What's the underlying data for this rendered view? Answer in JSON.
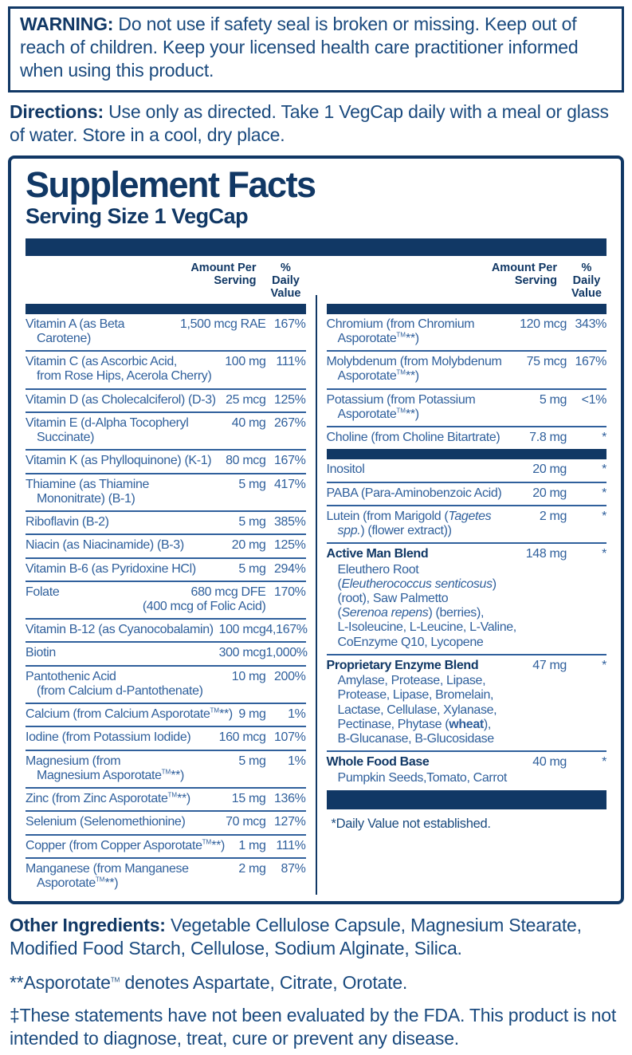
{
  "warning": {
    "label": "WARNING:",
    "text": " Do not use if safety seal is broken or missing. Keep out of reach of children. Keep your licensed health care practitioner informed when using this product."
  },
  "directions": {
    "label": "Directions:",
    "text": " Use only as directed. Take 1 VegCap daily with a meal or glass of water. Store in a cool, dry place."
  },
  "facts": {
    "title": "Supplement Facts",
    "serving_size": "Serving Size 1 VegCap",
    "col_headers": {
      "amount": "Amount Per\nServing",
      "dv": "% Daily\nValue"
    },
    "left_rows": [
      {
        "name": "Vitamin A (as Beta Carotene)",
        "amount": "1,500 mcg RAE",
        "dv": "167%"
      },
      {
        "name": "Vitamin C (as Ascorbic Acid,\nfrom Rose Hips, Acerola Cherry)",
        "amount": "100 mg",
        "dv": "111%"
      },
      {
        "name": "Vitamin D (as Cholecalciferol) (D-3)",
        "amount": "25 mcg",
        "dv": "125%"
      },
      {
        "name": "Vitamin E (d-Alpha Tocopheryl\nSuccinate)",
        "amount": "40 mg",
        "dv": "267%"
      },
      {
        "name": "Vitamin K (as Phylloquinone) (K-1)",
        "amount": "80 mcg",
        "dv": "167%"
      },
      {
        "name": "Thiamine (as Thiamine\nMononitrate) (B-1)",
        "amount": "5 mg",
        "dv": "417%"
      },
      {
        "name": "Riboflavin (B-2)",
        "amount": "5 mg",
        "dv": "385%"
      },
      {
        "name": "Niacin (as Niacinamide) (B-3)",
        "amount": "20 mg",
        "dv": "125%"
      },
      {
        "name": "Vitamin B-6 (as Pyridoxine HCl)",
        "amount": "5 mg",
        "dv": "294%"
      },
      {
        "name": "Folate",
        "amount": "680 mcg DFE\n(400 mcg of Folic Acid)",
        "dv": "170%"
      },
      {
        "name": "Vitamin B-12 (as Cyanocobalamin)",
        "amount": "100 mcg",
        "dv": "4,167%"
      },
      {
        "name": "Biotin",
        "amount": "300 mcg",
        "dv": "1,000%"
      },
      {
        "name": "Pantothenic Acid\n(from Calcium d-Pantothenate)",
        "amount": "10 mg",
        "dv": "200%"
      },
      {
        "name": "Calcium (from Calcium Asporotate{tm}**)",
        "amount": "9 mg",
        "dv": "1%"
      },
      {
        "name": "Iodine (from Potassium Iodide)",
        "amount": "160 mcg",
        "dv": "107%"
      },
      {
        "name": "Magnesium (from\nMagnesium Asporotate{tm}**)",
        "amount": "5 mg",
        "dv": "1%"
      },
      {
        "name": "Zinc (from Zinc Asporotate{tm}**)",
        "amount": "15 mg",
        "dv": "136%"
      },
      {
        "name": "Selenium (Selenomethionine)",
        "amount": "70 mcg",
        "dv": "127%"
      },
      {
        "name": "Copper (from Copper Asporotate{tm}**)",
        "amount": "1 mg",
        "dv": "111%"
      },
      {
        "name": "Manganese (from Manganese\nAsporotate{tm}**)",
        "amount": "2 mg",
        "dv": "87%"
      }
    ],
    "right_rows": [
      {
        "name": "Chromium (from Chromium\nAsporotate{tm}**)",
        "amount": "120 mcg",
        "dv": "343%"
      },
      {
        "name": "Molybdenum (from Molybdenum\nAsporotate{tm}**)",
        "amount": "75 mcg",
        "dv": "167%"
      },
      {
        "name": "Potassium (from Potassium\nAsporotate{tm}**)",
        "amount": "5 mg",
        "dv": "<1%"
      },
      {
        "name": "Choline (from Choline Bitartrate)",
        "amount": "7.8 mg",
        "dv": "*",
        "no_line": true
      },
      {
        "bar": true,
        "size": "small"
      },
      {
        "name": "Inositol",
        "amount": "20 mg",
        "dv": "*"
      },
      {
        "name": "PABA (Para-Aminobenzoic Acid)",
        "amount": "20 mg",
        "dv": "*"
      },
      {
        "name": "Lutein (from Marigold ({i}Tagetes\nspp.{/i}) (flower extract))",
        "amount": "2 mg",
        "dv": "*"
      },
      {
        "name": "Active Man Blend",
        "bold": true,
        "amount": "148 mg",
        "dv": "*",
        "sub": "Eleuthero Root\n({i}Eleutherococcus senticosus{/i})\n(root), Saw Palmetto\n({i}Serenoa repens{/i}) (berries),\nL-Isoleucine, L-Leucine, L-Valine,\nCoEnzyme Q10, Lycopene"
      },
      {
        "name": "Proprietary Enzyme Blend",
        "bold": true,
        "amount": "47 mg",
        "dv": "*",
        "sub": "Amylase, Protease, Lipase,\nProtease, Lipase, Bromelain,\nLactase, Cellulase, Xylanase,\nPectinase, Phytase ({b}wheat{/b}),\nB-Glucanase, B-Glucosidase"
      },
      {
        "name": "Whole Food Base",
        "bold": true,
        "amount": "40 mg",
        "dv": "*",
        "sub": "Pumpkin Seeds,Tomato, Carrot",
        "no_line": true
      },
      {
        "bar": true,
        "size": "large"
      }
    ],
    "footnote": "*Daily Value not established."
  },
  "other_ingredients": {
    "label": "Other Ingredients:",
    "text": " Vegetable Cellulose Capsule, Magnesium Stearate, Modified Food Starch, Cellulose, Sodium Alginate, Silica."
  },
  "asporotate_note": "**Asporotate{tm} denotes Aspartate, Citrate, Orotate.",
  "fda_note": "‡These statements have not been evaluated by the FDA. This product is not intended to diagnose, treat, cure or prevent any disease.",
  "colors": {
    "navy": "#113865",
    "blue": "#30609c",
    "body_text": "#1a4a7e"
  }
}
